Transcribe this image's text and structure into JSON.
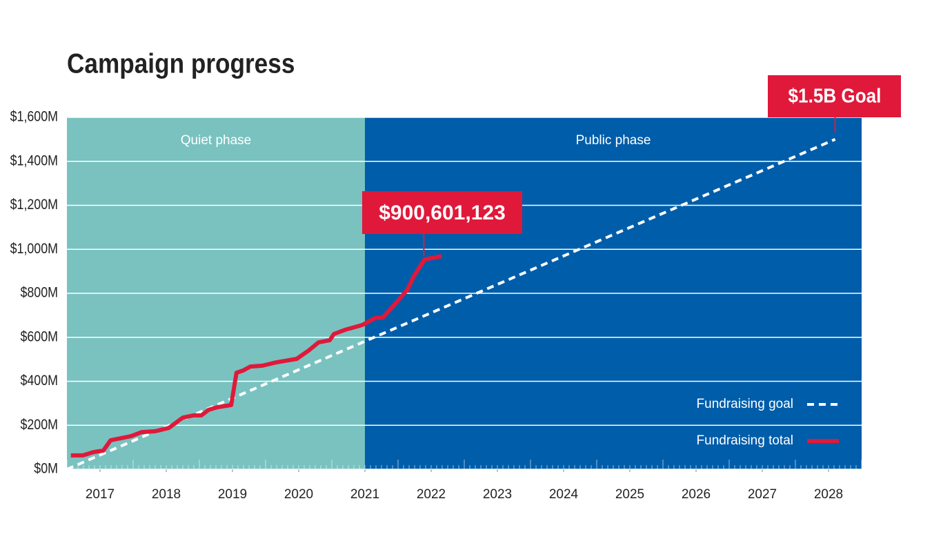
{
  "chart_data": {
    "type": "line",
    "title": "Campaign progress",
    "xlim": [
      2017,
      2029
    ],
    "ylim": [
      0,
      1600
    ],
    "xticks": [
      {
        "value": 2017.5,
        "label": "2017"
      },
      {
        "value": 2018.5,
        "label": "2018"
      },
      {
        "value": 2019.5,
        "label": "2019"
      },
      {
        "value": 2020.5,
        "label": "2020"
      },
      {
        "value": 2021.5,
        "label": "2021"
      },
      {
        "value": 2022.5,
        "label": "2022"
      },
      {
        "value": 2023.5,
        "label": "2023"
      },
      {
        "value": 2024.5,
        "label": "2024"
      },
      {
        "value": 2025.5,
        "label": "2025"
      },
      {
        "value": 2026.5,
        "label": "2026"
      },
      {
        "value": 2027.5,
        "label": "2027"
      },
      {
        "value": 2028.5,
        "label": "2028"
      }
    ],
    "yticks": [
      {
        "value": 0,
        "label": "$0M"
      },
      {
        "value": 200,
        "label": "$200M"
      },
      {
        "value": 400,
        "label": "$400M"
      },
      {
        "value": 600,
        "label": "$600M"
      },
      {
        "value": 800,
        "label": "$800M"
      },
      {
        "value": 1000,
        "label": "$1,000M"
      },
      {
        "value": 1200,
        "label": "$1,200M"
      },
      {
        "value": 1400,
        "label": "$1,400M"
      },
      {
        "value": 1600,
        "label": "$1,600M"
      }
    ],
    "grid": true,
    "legend": "lower right",
    "phases": [
      {
        "label": "Quiet phase",
        "start": 2017,
        "end": 2021.5,
        "color": "#79c2c0"
      },
      {
        "label": "Public phase",
        "start": 2021.5,
        "end": 2029,
        "color": "#005daa"
      }
    ],
    "series": [
      {
        "name": "Fundraising goal",
        "color": "#ffffff",
        "dashed": true,
        "x": [
          2017,
          2028.6
        ],
        "values": [
          0,
          1500
        ]
      },
      {
        "name": "Fundraising total",
        "color": "#e0193a",
        "dashed": false,
        "x": [
          2017.06,
          2017.24,
          2017.4,
          2017.55,
          2017.66,
          2017.81,
          2017.97,
          2018.13,
          2018.33,
          2018.54,
          2018.75,
          2018.91,
          2019.03,
          2019.14,
          2019.27,
          2019.48,
          2019.56,
          2019.66,
          2019.77,
          2019.95,
          2020.16,
          2020.47,
          2020.65,
          2020.8,
          2020.97,
          2021.03,
          2021.2,
          2021.46,
          2021.65,
          2021.77,
          2021.93,
          2022.14,
          2022.24,
          2022.4,
          2022.66
        ],
        "values": [
          63,
          63,
          78,
          85,
          132,
          141,
          151,
          169,
          173,
          188,
          235,
          245,
          245,
          270,
          282,
          292,
          439,
          449,
          467,
          471,
          486,
          502,
          540,
          577,
          587,
          615,
          634,
          656,
          687,
          690,
          743,
          816,
          878,
          954,
          969
        ]
      }
    ],
    "annotations": [
      {
        "text": "$900,601,123"
      },
      {
        "text": "$1.5B Goal"
      }
    ]
  }
}
